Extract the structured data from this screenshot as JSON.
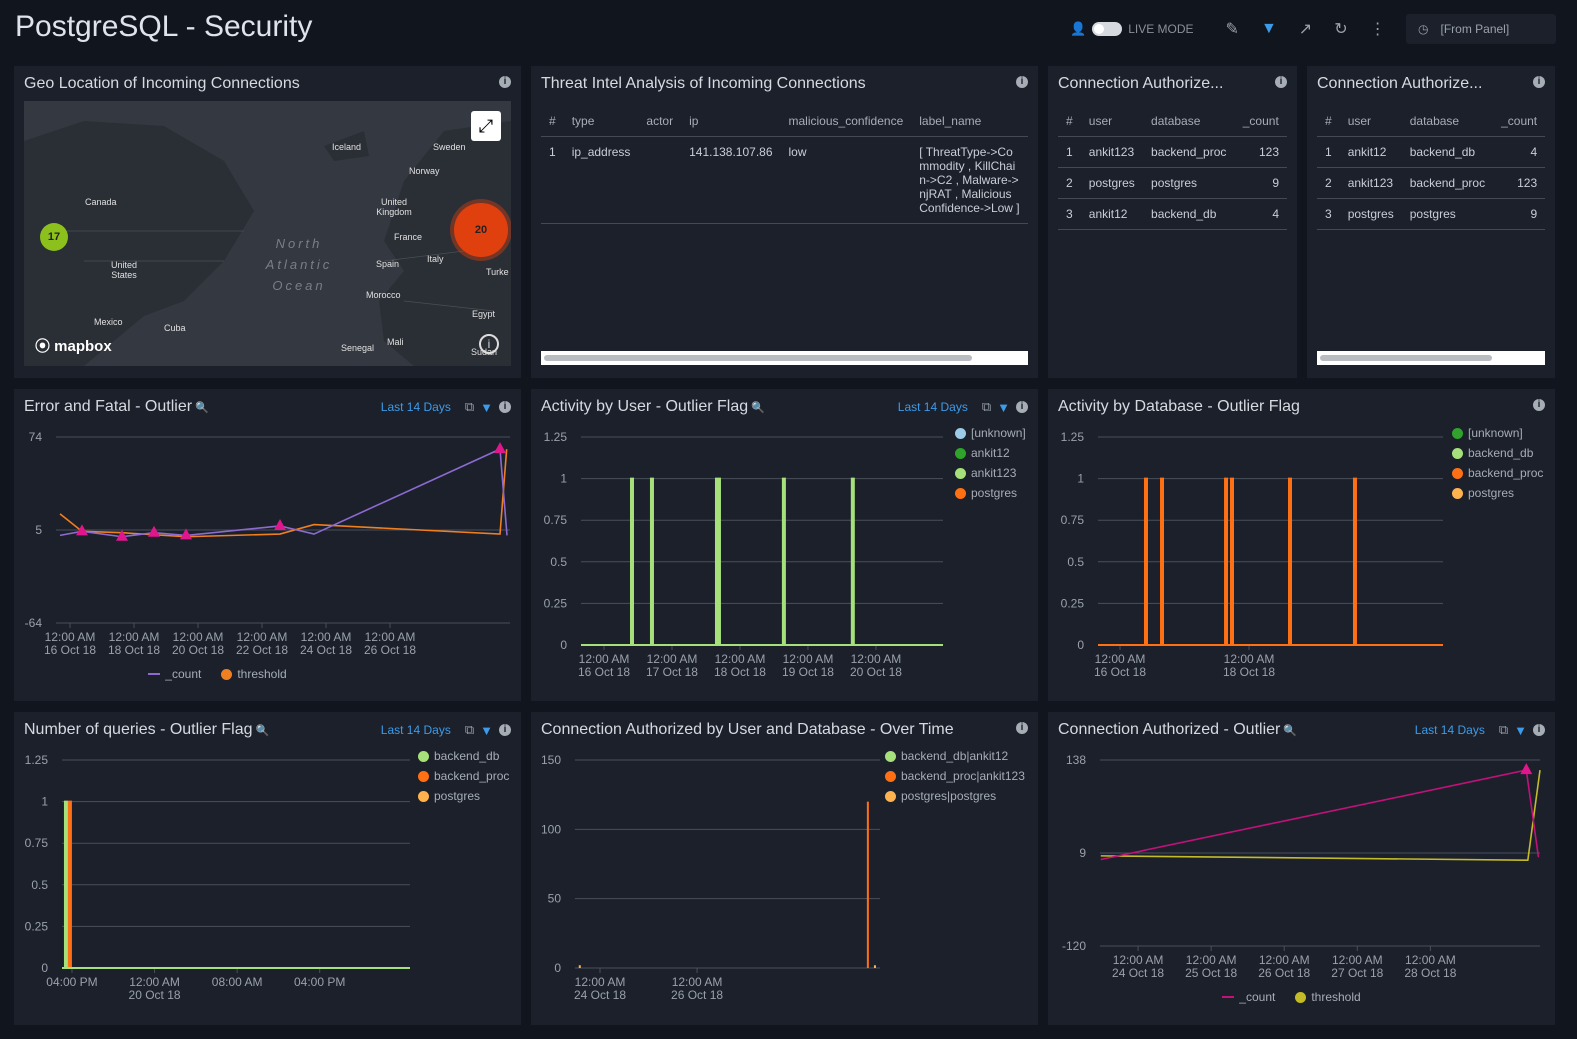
{
  "header": {
    "title": "PostgreSQL - Security",
    "live_mode_label": "LIVE MODE",
    "time_range": "[From Panel]",
    "icons": [
      "user-icon",
      "live-mode-toggle",
      "pencil-icon",
      "filter-icon",
      "share-icon",
      "refresh-icon",
      "more-icon",
      "clock-icon"
    ]
  },
  "geo": {
    "title": "Geo Location of Incoming Connections",
    "attribution": "mapbox",
    "labels": [
      "Iceland",
      "Sweden",
      "Norway",
      "Canada",
      "United Kingdom",
      "France",
      "United States",
      "Spain",
      "Italy",
      "Turke",
      "Morocco",
      "Egypt",
      "Mexico",
      "Cuba",
      "Senegal",
      "Mali",
      "Sudan"
    ],
    "ocean": "North Atlantic Ocean",
    "clusters": [
      {
        "count": "17",
        "color": "#8cc01c"
      },
      {
        "count": "20",
        "color": "#e0400e"
      }
    ]
  },
  "threat": {
    "title": "Threat Intel Analysis of Incoming Connections",
    "columns": [
      "#",
      "type",
      "actor",
      "ip",
      "malicious_confidence",
      "label_name"
    ],
    "rows": [
      [
        "1",
        "ip_address",
        "",
        "141.138.107.86",
        "low",
        "[ ThreatType->Commodity , KillChain->C2 , Malware->njRAT , MaliciousConfidence->Low ]"
      ]
    ]
  },
  "auth1": {
    "title": "Connection Authorize...",
    "columns": [
      "#",
      "user",
      "database",
      "_count"
    ],
    "rows": [
      [
        "1",
        "ankit123",
        "backend_proc",
        "123"
      ],
      [
        "2",
        "postgres",
        "postgres",
        "9"
      ],
      [
        "3",
        "ankit12",
        "backend_db",
        "4"
      ]
    ]
  },
  "auth2": {
    "title": "Connection Authorize...",
    "columns": [
      "#",
      "user",
      "database",
      "_count"
    ],
    "rows": [
      [
        "1",
        "ankit12",
        "backend_db",
        "4"
      ],
      [
        "2",
        "ankit123",
        "backend_proc",
        "123"
      ],
      [
        "3",
        "postgres",
        "postgres",
        "9"
      ]
    ]
  },
  "time_label": "Last 14 Days",
  "chart_data": [
    {
      "id": "err",
      "title": "Error and Fatal - Outlier",
      "type": "line",
      "ylim": [
        -64,
        74
      ],
      "yticks": [
        74,
        5,
        -64
      ],
      "xlim": [
        "2018-10-15T13:30",
        "2018-10-29T18:00"
      ],
      "xticks": [
        [
          "2018-10-16T00:00",
          "12:00 AM",
          "16 Oct 18"
        ],
        [
          "2018-10-18T00:00",
          "12:00 AM",
          "18 Oct 18"
        ],
        [
          "2018-10-20T00:00",
          "12:00 AM",
          "20 Oct 18"
        ],
        [
          "2018-10-22T00:00",
          "12:00 AM",
          "22 Oct 18"
        ],
        [
          "2018-10-24T00:00",
          "12:00 AM",
          "24 Oct 18"
        ],
        [
          "2018-10-26T00:00",
          "12:00 AM",
          "26 Oct 18"
        ]
      ],
      "series": [
        {
          "name": "_count",
          "color": "#8c6ad0",
          "points": [
            [
              "2018-10-15T16:30",
              1
            ],
            [
              "2018-10-16T09:00",
              4
            ],
            [
              "2018-10-17T15:00",
              0
            ],
            [
              "2018-10-18T15:00",
              3
            ],
            [
              "2018-10-19T15:00",
              1
            ],
            [
              "2018-10-22T13:30",
              8
            ],
            [
              "2018-10-23T15:00",
              2
            ],
            [
              "2018-10-29T10:30",
              65
            ],
            [
              "2018-10-29T15:45",
              1
            ]
          ],
          "outliers": [
            "2018-10-16T09:00",
            "2018-10-17T15:00",
            "2018-10-18T15:00",
            "2018-10-19T15:00",
            "2018-10-22T13:30",
            "2018-10-29T10:30"
          ]
        },
        {
          "name": "threshold",
          "color": "#f07f1f",
          "points": [
            [
              "2018-10-15T16:30",
              17
            ],
            [
              "2018-10-16T09:00",
              4
            ],
            [
              "2018-10-17T15:00",
              3
            ],
            [
              "2018-10-19T15:00",
              0
            ],
            [
              "2018-10-22T13:30",
              2
            ],
            [
              "2018-10-23T15:00",
              9
            ],
            [
              "2018-10-29T10:30",
              2
            ],
            [
              "2018-10-29T15:30",
              65
            ]
          ]
        }
      ],
      "outlier_color": "#e0168c",
      "legend": "bottom"
    },
    {
      "id": "user",
      "title": "Activity by User - Outlier Flag",
      "type": "line",
      "ylim": [
        0,
        1.25
      ],
      "yticks": [
        1.25,
        1,
        0.75,
        0.5,
        0.25,
        0
      ],
      "xlim": [
        "2018-10-15T15:53",
        "2018-10-20T23:40"
      ],
      "xticks": [
        [
          "2018-10-16T00:00",
          "12:00 AM",
          "16 Oct 18"
        ],
        [
          "2018-10-17T00:00",
          "12:00 AM",
          "17 Oct 18"
        ],
        [
          "2018-10-18T00:00",
          "12:00 AM",
          "18 Oct 18"
        ],
        [
          "2018-10-19T00:00",
          "12:00 AM",
          "19 Oct 18"
        ],
        [
          "2018-10-20T00:00",
          "12:00 AM",
          "20 Oct 18"
        ]
      ],
      "series": [
        {
          "name": "[unknown]",
          "color": "#9ccbe8",
          "spikes": []
        },
        {
          "name": "ankit12",
          "color": "#2fa32b",
          "spikes": []
        },
        {
          "name": "ankit123",
          "color": "#a6e07a",
          "spikes": [
            "2018-10-16T09:53",
            "2018-10-16T16:56",
            "2018-10-17T15:53",
            "2018-10-17T16:35",
            "2018-10-18T15:30",
            "2018-10-19T15:50"
          ]
        },
        {
          "name": "postgres",
          "color": "#ff7014",
          "spikes": []
        }
      ],
      "legend": "right"
    },
    {
      "id": "db",
      "title": "Activity by Database - Outlier Flag",
      "type": "line",
      "ylim": [
        0,
        1.25
      ],
      "yticks": [
        1.25,
        1,
        0.75,
        0.5,
        0.25,
        0
      ],
      "xlim": [
        "2018-10-15T15:49",
        "2018-10-21T00:10"
      ],
      "xticks": [
        [
          "2018-10-16T00:00",
          "12:00 AM",
          "16 Oct 18"
        ],
        [
          "2018-10-18T00:00",
          "12:00 AM",
          "18 Oct 18"
        ]
      ],
      "series": [
        {
          "name": "[unknown]",
          "color": "#2fa32b",
          "spikes": []
        },
        {
          "name": "backend_db",
          "color": "#a6e07a",
          "spikes": []
        },
        {
          "name": "backend_proc",
          "color": "#ff7014",
          "spikes": [
            "2018-10-16T09:40",
            "2018-10-16T15:38",
            "2018-10-17T15:27",
            "2018-10-17T17:40",
            "2018-10-18T15:15",
            "2018-10-19T15:25"
          ]
        },
        {
          "name": "postgres",
          "color": "#ffb24d",
          "spikes": []
        }
      ],
      "legend": "right"
    },
    {
      "id": "queries",
      "title": "Number of queries - Outlier Flag",
      "type": "line",
      "ylim": [
        0,
        1.25
      ],
      "yticks": [
        1.25,
        1,
        0.75,
        0.5,
        0.25,
        0
      ],
      "xlim": [
        "2018-10-19T15:02",
        "2018-10-21T00:45"
      ],
      "xticks": [
        [
          "2018-10-19T16:00",
          "04:00 PM",
          ""
        ],
        [
          "2018-10-20T00:00",
          "12:00 AM",
          "20 Oct 18"
        ],
        [
          "2018-10-20T08:00",
          "08:00 AM",
          ""
        ],
        [
          "2018-10-20T16:00",
          "04:00 PM",
          ""
        ]
      ],
      "series": [
        {
          "name": "backend_db",
          "color": "#a6e07a",
          "spikes": [
            "2018-10-19T15:25"
          ]
        },
        {
          "name": "backend_proc",
          "color": "#ff7014",
          "spikes": [
            "2018-10-19T15:48"
          ]
        },
        {
          "name": "postgres",
          "color": "#ffb24d",
          "spikes": []
        }
      ],
      "legend": "right"
    },
    {
      "id": "overtime",
      "title": "Connection Authorized by User and Database - Over Time",
      "type": "line",
      "ylim": [
        0,
        150
      ],
      "yticks": [
        150,
        100,
        50,
        0
      ],
      "xlim": [
        "2018-10-23T11:38",
        "2018-10-29T18:30"
      ],
      "xticks": [
        [
          "2018-10-24T00:00",
          "12:00 AM",
          "24 Oct 18"
        ],
        [
          "2018-10-26T00:00",
          "12:00 AM",
          "26 Oct 18"
        ]
      ],
      "series": [
        {
          "name": "backend_db|ankit12",
          "color": "#a6e07a",
          "bars": []
        },
        {
          "name": "backend_proc|ankit123",
          "color": "#ff7014",
          "bars": [
            [
              "2018-10-29T12:30",
              120
            ]
          ]
        },
        {
          "name": "postgres|postgres",
          "color": "#ffb24d",
          "bars": [
            [
              "2018-10-23T14:00",
              2
            ],
            [
              "2018-10-29T16:00",
              2
            ]
          ]
        }
      ],
      "legend": "right"
    },
    {
      "id": "authout",
      "title": "Connection Authorized - Outlier",
      "type": "line",
      "ylim": [
        -120,
        138
      ],
      "yticks": [
        138,
        9,
        -120
      ],
      "xlim": [
        "2018-10-23T11:30",
        "2018-10-29T12:00"
      ],
      "xticks": [
        [
          "2018-10-24T00:00",
          "12:00 AM",
          "24 Oct 18"
        ],
        [
          "2018-10-25T00:00",
          "12:00 AM",
          "25 Oct 18"
        ],
        [
          "2018-10-26T00:00",
          "12:00 AM",
          "26 Oct 18"
        ],
        [
          "2018-10-27T00:00",
          "12:00 AM",
          "27 Oct 18"
        ],
        [
          "2018-10-28T00:00",
          "12:00 AM",
          "28 Oct 18"
        ]
      ],
      "series": [
        {
          "name": "_count",
          "color": "#c2127a",
          "points": [
            [
              "2018-10-23T11:45",
              0
            ],
            [
              "2018-10-29T07:30",
              124
            ],
            [
              "2018-10-29T11:30",
              3
            ]
          ],
          "outliers": [
            "2018-10-29T07:30"
          ]
        },
        {
          "name": "threshold",
          "color": "#c4bb28",
          "points": [
            [
              "2018-10-23T11:45",
              5
            ],
            [
              "2018-10-29T08:00",
              -1
            ],
            [
              "2018-10-29T12:00",
              124
            ]
          ]
        }
      ],
      "outlier_color": "#e0168c",
      "legend": "bottom"
    }
  ]
}
